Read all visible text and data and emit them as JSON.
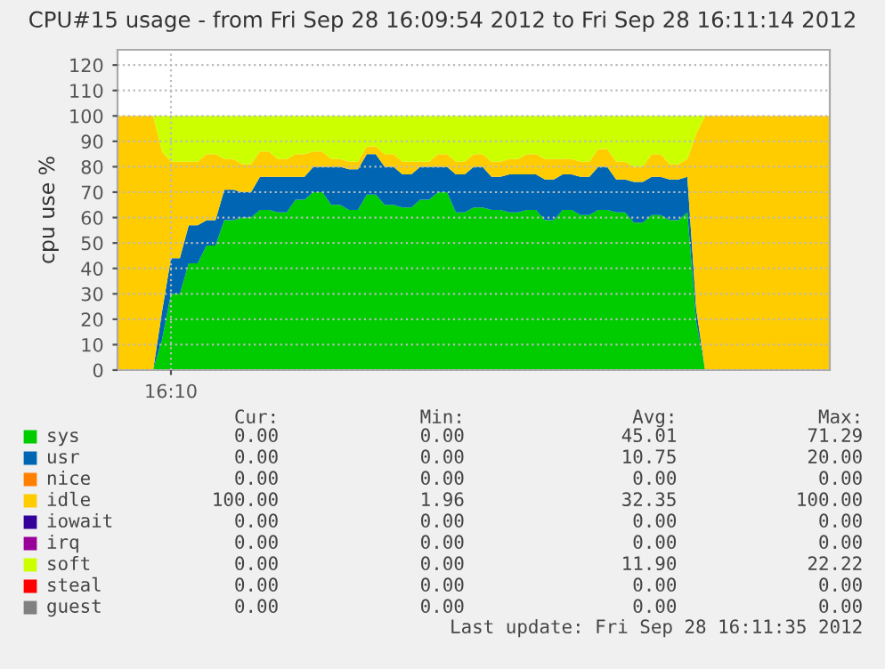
{
  "chart_data": {
    "type": "area",
    "stacked": true,
    "title": "CPU#15 usage - from Fri Sep 28 16:09:54 2012 to Fri Sep 28 16:11:14 2012",
    "ylabel": "cpu use %",
    "categories": [
      null,
      null,
      null,
      null,
      null,
      null,
      "16:10",
      null,
      null,
      null,
      null,
      null,
      null,
      null,
      null,
      null,
      null,
      null,
      null,
      null,
      null,
      null,
      null,
      null,
      null,
      null,
      null,
      null,
      null,
      null,
      null,
      null,
      null,
      null,
      null,
      null,
      null,
      null,
      null,
      null,
      null,
      null,
      null,
      null,
      null,
      null,
      null,
      null,
      null,
      null,
      null,
      null,
      null,
      null,
      null,
      null,
      null,
      null,
      null,
      null,
      null,
      null,
      null,
      null,
      null,
      null,
      null,
      null,
      null,
      null,
      null,
      null,
      null,
      null,
      null,
      null,
      null,
      null,
      null,
      null,
      null
    ],
    "series": [
      {
        "name": "sys",
        "color": "#00cc00",
        "values": [
          0,
          0,
          0,
          0,
          0,
          12,
          30,
          30,
          42,
          42,
          49,
          49,
          59,
          59,
          60,
          60,
          63,
          63,
          62,
          62,
          67,
          67,
          70,
          70,
          65,
          65,
          63,
          63,
          69,
          69,
          65,
          65,
          64,
          64,
          67,
          67,
          70,
          70,
          62,
          62,
          64,
          64,
          63,
          63,
          62,
          62,
          63,
          63,
          59,
          59,
          63,
          63,
          61,
          61,
          63,
          63,
          62,
          62,
          58,
          58,
          61,
          61,
          59,
          59,
          62,
          19,
          0,
          0,
          0,
          0,
          0,
          0,
          0,
          0,
          0,
          0,
          0,
          0,
          0,
          0,
          0
        ]
      },
      {
        "name": "usr",
        "color": "#0066b3",
        "values": [
          0,
          0,
          0,
          0,
          0,
          11,
          14,
          14,
          15,
          15,
          10,
          10,
          12,
          12,
          10,
          10,
          13,
          13,
          14,
          14,
          9,
          9,
          10,
          10,
          15,
          15,
          16,
          16,
          16,
          16,
          15,
          15,
          13,
          13,
          13,
          13,
          10,
          10,
          15,
          15,
          16,
          16,
          13,
          13,
          15,
          15,
          14,
          14,
          16,
          16,
          14,
          14,
          15,
          15,
          17,
          17,
          13,
          13,
          16,
          16,
          15,
          15,
          16,
          16,
          14,
          5,
          0,
          0,
          0,
          0,
          0,
          0,
          0,
          0,
          0,
          0,
          0,
          0,
          0,
          0,
          0
        ]
      },
      {
        "name": "nice",
        "color": "#ff8000",
        "values": [
          null,
          null,
          null,
          null,
          null,
          null,
          null,
          null,
          null,
          null,
          null,
          null,
          null,
          null,
          null,
          null,
          null,
          null,
          null,
          null,
          null,
          null,
          null,
          null,
          null,
          null,
          null,
          null,
          null,
          null,
          null,
          null,
          null,
          null,
          null,
          null,
          null,
          null,
          null,
          null,
          null,
          null,
          null,
          null,
          null,
          null,
          null,
          null,
          null,
          null,
          null,
          null,
          null,
          null,
          null,
          null,
          null,
          null,
          null,
          null,
          null,
          null,
          null,
          null,
          null,
          null,
          null,
          null,
          null,
          null,
          null,
          null,
          null,
          null,
          null,
          null,
          null,
          null,
          null,
          null,
          null
        ]
      },
      {
        "name": "idle",
        "color": "#ffcc00",
        "values": [
          100,
          100,
          100,
          100,
          100,
          63,
          38,
          38,
          25,
          25,
          26,
          26,
          12,
          12,
          11,
          11,
          10,
          10,
          7,
          7,
          9,
          9,
          6,
          6,
          3,
          3,
          3,
          3,
          3,
          3,
          5,
          5,
          5,
          5,
          2,
          2,
          5,
          5,
          5,
          5,
          5,
          5,
          6,
          6,
          6,
          6,
          8,
          8,
          8,
          8,
          6,
          6,
          6,
          6,
          7,
          7,
          7,
          7,
          6,
          6,
          9,
          9,
          6,
          6,
          7,
          69,
          100,
          100,
          100,
          100,
          100,
          100,
          100,
          100,
          100,
          100,
          100,
          100,
          100,
          100,
          100
        ]
      },
      {
        "name": "iowait",
        "color": "#330099",
        "values": [
          null,
          null,
          null,
          null,
          null,
          null,
          null,
          null,
          null,
          null,
          null,
          null,
          null,
          null,
          null,
          null,
          null,
          null,
          null,
          null,
          null,
          null,
          null,
          null,
          null,
          null,
          null,
          null,
          null,
          null,
          null,
          null,
          null,
          null,
          null,
          null,
          null,
          null,
          null,
          null,
          null,
          null,
          null,
          null,
          null,
          null,
          null,
          null,
          null,
          null,
          null,
          null,
          null,
          null,
          null,
          null,
          null,
          null,
          null,
          null,
          null,
          null,
          null,
          null,
          null,
          null,
          null,
          null,
          null,
          null,
          null,
          null,
          null,
          null,
          null,
          null,
          null,
          null,
          null,
          null,
          null
        ]
      },
      {
        "name": "irq",
        "color": "#990099",
        "values": [
          null,
          null,
          null,
          null,
          null,
          null,
          null,
          null,
          null,
          null,
          null,
          null,
          null,
          null,
          null,
          null,
          null,
          null,
          null,
          null,
          null,
          null,
          null,
          null,
          null,
          null,
          null,
          null,
          null,
          null,
          null,
          null,
          null,
          null,
          null,
          null,
          null,
          null,
          null,
          null,
          null,
          null,
          null,
          null,
          null,
          null,
          null,
          null,
          null,
          null,
          null,
          null,
          null,
          null,
          null,
          null,
          null,
          null,
          null,
          null,
          null,
          null,
          null,
          null,
          null,
          null,
          null,
          null,
          null,
          null,
          null,
          null,
          null,
          null,
          null,
          null,
          null,
          null,
          null,
          null,
          null
        ]
      },
      {
        "name": "soft",
        "color": "#ccff00",
        "values": [
          0,
          0,
          0,
          0,
          0,
          14,
          18,
          18,
          18,
          18,
          15,
          15,
          17,
          17,
          19,
          19,
          14,
          14,
          17,
          17,
          15,
          15,
          14,
          14,
          17,
          17,
          18,
          18,
          12,
          12,
          15,
          15,
          18,
          18,
          18,
          18,
          15,
          15,
          18,
          18,
          15,
          15,
          18,
          18,
          17,
          17,
          15,
          15,
          17,
          17,
          17,
          17,
          18,
          18,
          13,
          13,
          18,
          18,
          20,
          20,
          15,
          15,
          19,
          19,
          17,
          7,
          0,
          0,
          0,
          0,
          0,
          0,
          0,
          0,
          0,
          0,
          0,
          0,
          0,
          0,
          0
        ]
      },
      {
        "name": "steal",
        "color": "#ff0000",
        "values": [
          null,
          null,
          null,
          null,
          null,
          null,
          null,
          null,
          null,
          null,
          null,
          null,
          null,
          null,
          null,
          null,
          null,
          null,
          null,
          null,
          null,
          null,
          null,
          null,
          null,
          null,
          null,
          null,
          null,
          null,
          null,
          null,
          null,
          null,
          null,
          null,
          null,
          null,
          null,
          null,
          null,
          null,
          null,
          null,
          null,
          null,
          null,
          null,
          null,
          null,
          null,
          null,
          null,
          null,
          null,
          null,
          null,
          null,
          null,
          null,
          null,
          null,
          null,
          null,
          null,
          null,
          null,
          null,
          null,
          null,
          null,
          null,
          null,
          null,
          null,
          null,
          null,
          null,
          null,
          null,
          null
        ]
      },
      {
        "name": "guest",
        "color": "#808080",
        "values": [
          null,
          null,
          null,
          null,
          null,
          null,
          null,
          null,
          null,
          null,
          null,
          null,
          null,
          null,
          null,
          null,
          null,
          null,
          null,
          null,
          null,
          null,
          null,
          null,
          null,
          null,
          null,
          null,
          null,
          null,
          null,
          null,
          null,
          null,
          null,
          null,
          null,
          null,
          null,
          null,
          null,
          null,
          null,
          null,
          null,
          null,
          null,
          null,
          null,
          null,
          null,
          null,
          null,
          null,
          null,
          null,
          null,
          null,
          null,
          null,
          null,
          null,
          null,
          null,
          null,
          null,
          null,
          null,
          null,
          null,
          null,
          null,
          null,
          null,
          null,
          null,
          null,
          null,
          null,
          null,
          null
        ]
      }
    ],
    "ylim": [
      0,
      126
    ],
    "yticks": [
      0,
      10,
      20,
      30,
      40,
      50,
      60,
      70,
      80,
      90,
      100,
      110,
      120
    ],
    "grid": true,
    "legend": "bottom",
    "annotations": [
      "Cur:",
      "Min:",
      "Avg:",
      "Max:",
      "0.00",
      "0.00",
      "45.01",
      "71.29",
      "0.00",
      "0.00",
      "10.75",
      "20.00",
      "0.00",
      "0.00",
      "0.00",
      "0.00",
      "100.00",
      "1.96",
      "32.35",
      "100.00",
      "0.00",
      "0.00",
      "0.00",
      "0.00",
      "0.00",
      "0.00",
      "0.00",
      "0.00",
      "0.00",
      "0.00",
      "11.90",
      "22.22",
      "0.00",
      "0.00",
      "0.00",
      "0.00",
      "0.00",
      "0.00",
      "0.00",
      "0.00",
      "Last update: Fri Sep 28 16:11:35 2012"
    ]
  }
}
